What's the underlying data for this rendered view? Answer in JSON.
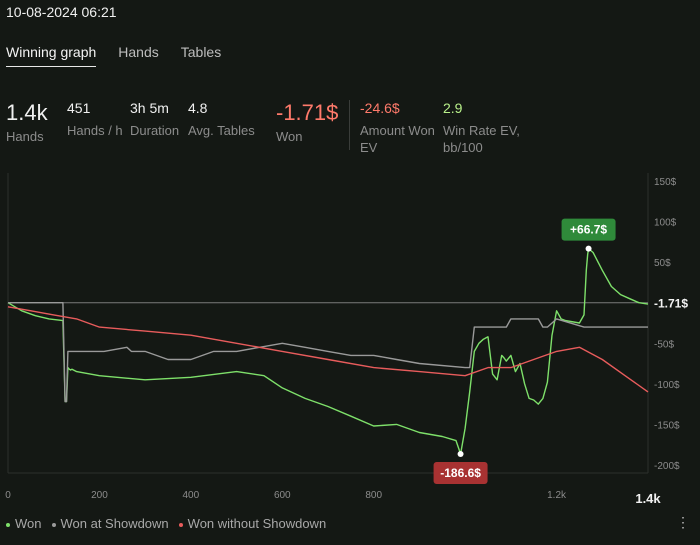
{
  "header": {
    "datetime": "10-08-2024 06:21"
  },
  "tabs": [
    {
      "label": "Winning graph"
    },
    {
      "label": "Hands"
    },
    {
      "label": "Tables"
    }
  ],
  "stats": {
    "hands": {
      "value": "1.4k",
      "label": "Hands"
    },
    "hands_per_hour": {
      "value": "451",
      "label": "Hands / h"
    },
    "duration": {
      "value": "3h 5m",
      "label": "Duration"
    },
    "avg_tables": {
      "value": "4.8",
      "label": "Avg. Tables"
    },
    "won": {
      "value": "-1.71$",
      "label": "Won"
    },
    "amount_won_ev": {
      "value": "-24.6$",
      "label": "Amount Won EV"
    },
    "win_rate_ev": {
      "value": "2.9",
      "label": "Win Rate EV, bb/100"
    }
  },
  "legend": [
    {
      "label": "Won"
    },
    {
      "label": "Won at Showdown"
    },
    {
      "label": "Won without Showdown"
    }
  ],
  "more_icon": "ellipsis-vertical",
  "chart_data": {
    "type": "line",
    "x_ticks": [
      "0",
      "200",
      "400",
      "600",
      "800",
      "1.2k"
    ],
    "x_end_label": "1.4k",
    "y_ticks": [
      "150$",
      "100$",
      "50$",
      "-50$",
      "-100$",
      "-150$",
      "-200$"
    ],
    "xlim": [
      0,
      1400
    ],
    "ylim": [
      -210,
      160
    ],
    "current_label": "-1.71$",
    "max_annotation": {
      "x": 1270,
      "y": 66.7,
      "label": "+66.7$"
    },
    "min_annotation": {
      "x": 990,
      "y": -186.6,
      "label": "-186.6$"
    },
    "colors": {
      "won": "#7ee06a",
      "showdown": "#9a9a9a",
      "non_showdown": "#e85c5c",
      "max_badge": "#2f8a3a",
      "min_badge": "#a83232",
      "zero_line": "#7a7a7a"
    },
    "series": [
      {
        "name": "Won",
        "x": [
          0,
          30,
          60,
          90,
          120,
          125,
          128,
          131,
          134,
          137,
          140,
          150,
          200,
          300,
          400,
          500,
          560,
          600,
          650,
          700,
          750,
          800,
          850,
          900,
          950,
          980,
          990,
          1000,
          1010,
          1020,
          1030,
          1040,
          1050,
          1060,
          1070,
          1080,
          1085,
          1090,
          1100,
          1110,
          1120,
          1130,
          1140,
          1150,
          1160,
          1170,
          1180,
          1190,
          1200,
          1210,
          1220,
          1250,
          1260,
          1265,
          1268,
          1270,
          1280,
          1300,
          1320,
          1340,
          1360,
          1380,
          1400
        ],
        "y": [
          0,
          -10,
          -16,
          -20,
          -22,
          -122,
          -122,
          -80,
          -82,
          -83,
          -82,
          -85,
          -90,
          -95,
          -92,
          -85,
          -90,
          -105,
          -118,
          -128,
          -140,
          -152,
          -150,
          -160,
          -165,
          -170,
          -186.6,
          -155,
          -110,
          -60,
          -50,
          -45,
          -42,
          -88,
          -95,
          -65,
          -68,
          -72,
          -65,
          -85,
          -75,
          -100,
          -118,
          -120,
          -125,
          -118,
          -98,
          -40,
          -10,
          -20,
          -22,
          -25,
          -15,
          40,
          60,
          66.7,
          62,
          40,
          20,
          10,
          5,
          0,
          -1.71
        ]
      },
      {
        "name": "Won at Showdown",
        "x": [
          0,
          120,
          125,
          128,
          131,
          160,
          210,
          260,
          270,
          300,
          350,
          400,
          450,
          500,
          600,
          650,
          700,
          750,
          800,
          850,
          900,
          1000,
          1010,
          1020,
          1080,
          1090,
          1100,
          1140,
          1150,
          1160,
          1170,
          1180,
          1200,
          1260,
          1270,
          1280,
          1290,
          1300,
          1330,
          1400
        ],
        "y": [
          0,
          0,
          -122,
          -122,
          -60,
          -60,
          -60,
          -55,
          -60,
          -60,
          -70,
          -70,
          -60,
          -60,
          -50,
          -55,
          -60,
          -65,
          -65,
          -70,
          -75,
          -80,
          -80,
          -30,
          -30,
          -30,
          -20,
          -20,
          -20,
          -20,
          -30,
          -30,
          -20,
          -30,
          -30,
          -30,
          -30,
          -30,
          -30,
          -30
        ]
      },
      {
        "name": "Won without Showdown",
        "x": [
          0,
          50,
          100,
          150,
          200,
          300,
          400,
          500,
          600,
          700,
          800,
          900,
          1000,
          1050,
          1100,
          1150,
          1200,
          1250,
          1300,
          1350,
          1400
        ],
        "y": [
          -5,
          -10,
          -15,
          -20,
          -30,
          -35,
          -40,
          -50,
          -60,
          -70,
          -80,
          -85,
          -90,
          -80,
          -80,
          -70,
          -60,
          -55,
          -70,
          -90,
          -110
        ]
      }
    ]
  }
}
